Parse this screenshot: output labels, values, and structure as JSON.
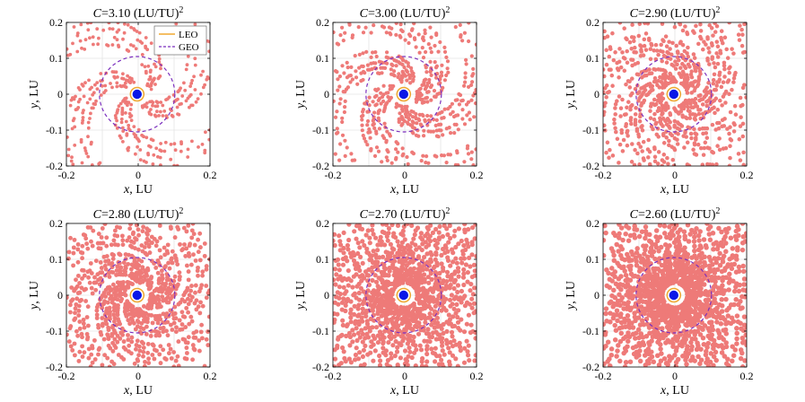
{
  "chart_data": [
    {
      "type": "scatter",
      "title_var": "C",
      "title_value": "=3.10 (LU/TU)",
      "title_exp": "2",
      "xlabel_var": "x",
      "xlabel_unit": ", LU",
      "ylabel_var": "y",
      "ylabel_unit": ", LU",
      "xlim": [
        -0.2,
        0.2
      ],
      "ylim": [
        -0.2,
        0.2
      ],
      "xticks": [
        "-0.2",
        "0",
        "0.2"
      ],
      "yticks": [
        "0.2",
        "0.1",
        "0",
        "-0.1",
        "-0.2"
      ],
      "grid": true,
      "density": 0.18,
      "legend": true
    },
    {
      "type": "scatter",
      "title_var": "C",
      "title_value": "=3.00 (LU/TU)",
      "title_exp": "2",
      "xlabel_var": "x",
      "xlabel_unit": ", LU",
      "ylabel_var": "y",
      "ylabel_unit": ", LU",
      "xlim": [
        -0.2,
        0.2
      ],
      "ylim": [
        -0.2,
        0.2
      ],
      "xticks": [
        "-0.2",
        "0",
        "0.2"
      ],
      "yticks": [
        "0.2",
        "0.1",
        "0",
        "-0.1",
        "-0.2"
      ],
      "grid": true,
      "density": 0.32,
      "legend": false
    },
    {
      "type": "scatter",
      "title_var": "C",
      "title_value": "=2.90 (LU/TU)",
      "title_exp": "2",
      "xlabel_var": "x",
      "xlabel_unit": ", LU",
      "ylabel_var": "y",
      "ylabel_unit": ", LU",
      "xlim": [
        -0.2,
        0.2
      ],
      "ylim": [
        -0.2,
        0.2
      ],
      "xticks": [
        "-0.2",
        "0",
        "0.2"
      ],
      "yticks": [
        "0.2",
        "0.1",
        "0",
        "-0.1",
        "-0.2"
      ],
      "grid": true,
      "density": 0.42,
      "legend": false
    },
    {
      "type": "scatter",
      "title_var": "C",
      "title_value": "=2.80 (LU/TU)",
      "title_exp": "2",
      "xlabel_var": "x",
      "xlabel_unit": ", LU",
      "ylabel_var": "y",
      "ylabel_unit": ", LU",
      "xlim": [
        -0.2,
        0.2
      ],
      "ylim": [
        -0.2,
        0.2
      ],
      "xticks": [
        "-0.2",
        "0",
        "0.2"
      ],
      "yticks": [
        "0.2",
        "0.1",
        "0",
        "-0.1",
        "-0.2"
      ],
      "grid": true,
      "density": 0.52,
      "legend": false
    },
    {
      "type": "scatter",
      "title_var": "C",
      "title_value": "=2.70 (LU/TU)",
      "title_exp": "2",
      "xlabel_var": "x",
      "xlabel_unit": ", LU",
      "ylabel_var": "y",
      "ylabel_unit": ", LU",
      "xlim": [
        -0.2,
        0.2
      ],
      "ylim": [
        -0.2,
        0.2
      ],
      "xticks": [
        "-0.2",
        "0",
        "0.2"
      ],
      "yticks": [
        "0.2",
        "0.1",
        "0",
        "-0.1",
        "-0.2"
      ],
      "grid": true,
      "density": 0.62,
      "legend": false
    },
    {
      "type": "scatter",
      "title_var": "C",
      "title_value": "=2.60 (LU/TU)",
      "title_exp": "2",
      "xlabel_var": "x",
      "xlabel_unit": ", LU",
      "ylabel_var": "y",
      "ylabel_unit": ", LU",
      "xlim": [
        -0.2,
        0.2
      ],
      "ylim": [
        -0.2,
        0.2
      ],
      "xticks": [
        "-0.2",
        "0",
        "0.2"
      ],
      "yticks": [
        "0.2",
        "0.1",
        "0",
        "-0.1",
        "-0.2"
      ],
      "grid": true,
      "density": 0.72,
      "legend": false
    }
  ],
  "reference_orbits": {
    "leo": {
      "label": "LEO",
      "color": "#f0a830"
    },
    "geo": {
      "label": "GEO",
      "color": "#7b2fbe"
    },
    "body_color": "#0a18e8"
  },
  "point_color": "#ee7a78"
}
